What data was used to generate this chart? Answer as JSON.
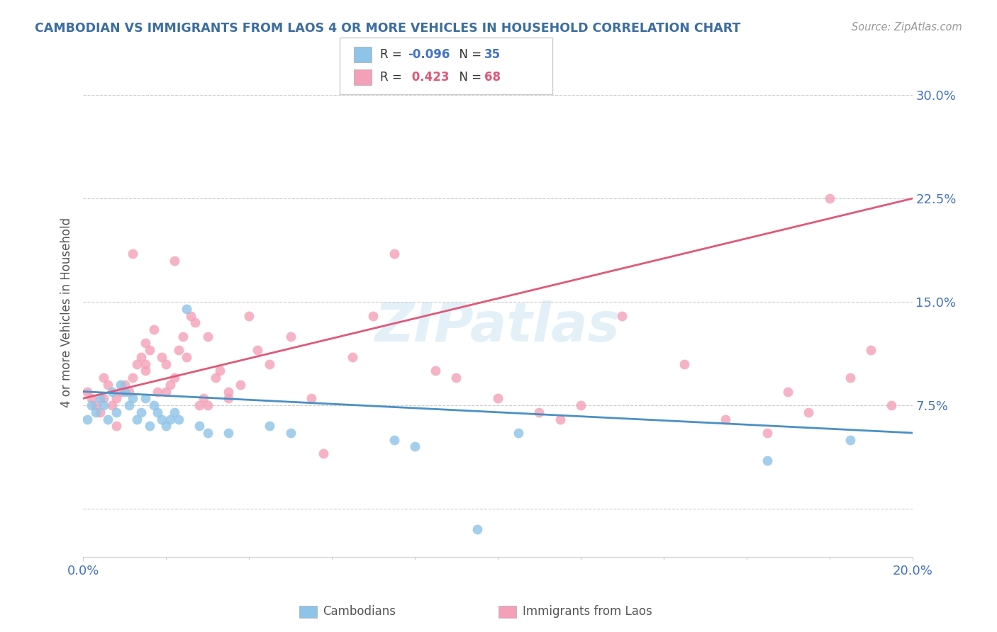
{
  "title": "CAMBODIAN VS IMMIGRANTS FROM LAOS 4 OR MORE VEHICLES IN HOUSEHOLD CORRELATION CHART",
  "source": "Source: ZipAtlas.com",
  "ylabel": "4 or more Vehicles in Household",
  "xlim": [
    0.0,
    20.0
  ],
  "ylim": [
    -3.5,
    32.0
  ],
  "yticks": [
    0.0,
    7.5,
    15.0,
    22.5,
    30.0
  ],
  "ytick_labels": [
    "",
    "7.5%",
    "15.0%",
    "22.5%",
    "30.0%"
  ],
  "legend_label1": "Cambodians",
  "legend_label2": "Immigrants from Laos",
  "watermark": "ZIPatlas",
  "blue_color": "#8ec4e8",
  "pink_color": "#f4a0b8",
  "blue_line_color": "#4a90c4",
  "pink_line_color": "#e05878",
  "title_color": "#3c6e9f",
  "axis_label_color": "#4472c4",
  "background_color": "#ffffff",
  "grid_color": "#cccccc",
  "cambodian_x": [
    0.1,
    0.2,
    0.3,
    0.4,
    0.5,
    0.6,
    0.7,
    0.8,
    0.9,
    1.0,
    1.1,
    1.2,
    1.3,
    1.4,
    1.5,
    1.6,
    1.7,
    1.8,
    1.9,
    2.0,
    2.1,
    2.2,
    2.3,
    2.5,
    2.8,
    3.0,
    3.5,
    4.5,
    5.0,
    7.5,
    8.0,
    9.5,
    10.5,
    16.5,
    18.5
  ],
  "cambodian_y": [
    6.5,
    7.5,
    7.0,
    8.0,
    7.5,
    6.5,
    8.5,
    7.0,
    9.0,
    8.5,
    7.5,
    8.0,
    6.5,
    7.0,
    8.0,
    6.0,
    7.5,
    7.0,
    6.5,
    6.0,
    6.5,
    7.0,
    6.5,
    14.5,
    6.0,
    5.5,
    5.5,
    6.0,
    5.5,
    5.0,
    4.5,
    -1.5,
    5.5,
    3.5,
    5.0
  ],
  "laos_x": [
    0.1,
    0.2,
    0.3,
    0.4,
    0.5,
    0.5,
    0.6,
    0.7,
    0.8,
    0.9,
    1.0,
    1.1,
    1.2,
    1.3,
    1.4,
    1.5,
    1.5,
    1.6,
    1.7,
    1.8,
    1.9,
    2.0,
    2.1,
    2.2,
    2.3,
    2.4,
    2.5,
    2.6,
    2.7,
    2.8,
    2.9,
    3.0,
    3.2,
    3.3,
    3.5,
    3.8,
    4.0,
    4.2,
    5.0,
    5.5,
    5.8,
    6.5,
    7.0,
    7.5,
    8.5,
    9.0,
    10.0,
    11.0,
    11.5,
    12.0,
    13.0,
    14.5,
    15.5,
    16.5,
    17.0,
    17.5,
    18.0,
    18.5,
    19.0,
    19.5,
    2.0,
    3.0,
    4.5,
    1.2,
    0.8,
    1.5,
    2.2,
    3.5
  ],
  "laos_y": [
    8.5,
    8.0,
    7.5,
    7.0,
    8.0,
    9.5,
    9.0,
    7.5,
    8.0,
    8.5,
    9.0,
    8.5,
    9.5,
    10.5,
    11.0,
    10.5,
    12.0,
    11.5,
    13.0,
    8.5,
    11.0,
    10.5,
    9.0,
    9.5,
    11.5,
    12.5,
    11.0,
    14.0,
    13.5,
    7.5,
    8.0,
    12.5,
    9.5,
    10.0,
    8.5,
    9.0,
    14.0,
    11.5,
    12.5,
    8.0,
    4.0,
    11.0,
    14.0,
    18.5,
    10.0,
    9.5,
    8.0,
    7.0,
    6.5,
    7.5,
    14.0,
    10.5,
    6.5,
    5.5,
    8.5,
    7.0,
    22.5,
    9.5,
    11.5,
    7.5,
    8.5,
    7.5,
    10.5,
    18.5,
    6.0,
    10.0,
    18.0,
    8.0
  ],
  "pink_line_x0": 0.0,
  "pink_line_y0": 8.0,
  "pink_line_x1": 20.0,
  "pink_line_y1": 22.5,
  "blue_line_x0": 0.0,
  "blue_line_y0": 8.5,
  "blue_line_x1": 20.0,
  "blue_line_y1": 5.5
}
